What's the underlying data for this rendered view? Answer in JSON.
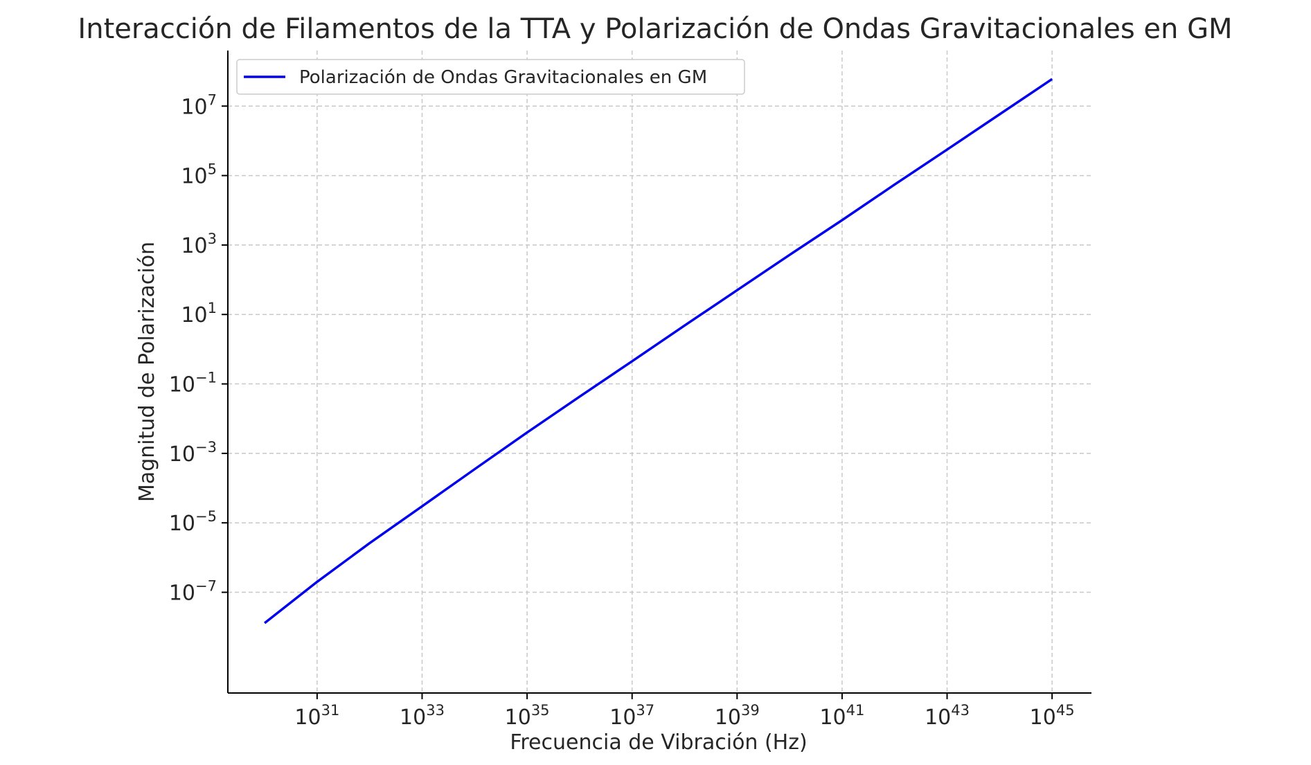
{
  "chart_data": {
    "type": "line",
    "title": "Interacción de Filamentos de la TTA y Polarización de Ondas Gravitacionales en GM",
    "xlabel": "Frecuencia de Vibración (Hz)",
    "ylabel": "Magnitud de Polarización",
    "x_scale": "log",
    "y_scale": "log",
    "xlim": [
      "1e29.3",
      "1e45.75"
    ],
    "ylim": [
      "1e-9.9",
      "1e8.6"
    ],
    "x_ticks": [
      {
        "base": "10",
        "exp": "31",
        "value": 1e+31
      },
      {
        "base": "10",
        "exp": "33",
        "value": 1e+33
      },
      {
        "base": "10",
        "exp": "35",
        "value": 1e+35
      },
      {
        "base": "10",
        "exp": "37",
        "value": 1e+37
      },
      {
        "base": "10",
        "exp": "39",
        "value": 1e+39
      },
      {
        "base": "10",
        "exp": "41",
        "value": 1e+41
      },
      {
        "base": "10",
        "exp": "43",
        "value": 1e+43
      },
      {
        "base": "10",
        "exp": "45",
        "value": 1e+45
      }
    ],
    "y_ticks": [
      {
        "base": "10",
        "exp": "7",
        "value": 10000000.0
      },
      {
        "base": "10",
        "exp": "5",
        "value": 100000.0
      },
      {
        "base": "10",
        "exp": "3",
        "value": 1000.0
      },
      {
        "base": "10",
        "exp": "1",
        "value": 10.0
      },
      {
        "base": "10",
        "exp": "−1",
        "value": 0.1
      },
      {
        "base": "10",
        "exp": "−3",
        "value": 0.001
      },
      {
        "base": "10",
        "exp": "−5",
        "value": 1e-05
      },
      {
        "base": "10",
        "exp": "−7",
        "value": 1e-07
      }
    ],
    "grid": true,
    "grid_style": "dashed",
    "legend_position": "top-left",
    "series": [
      {
        "name": "Polarización de Ondas Gravitacionales en GM",
        "color": "#0000ee",
        "x": [
          1e+30,
          1e+31,
          1e+32,
          1e+33,
          1e+34,
          1e+35,
          1e+36,
          1e+37,
          1e+38,
          1e+39,
          1e+40,
          1e+41,
          1e+42,
          1e+43,
          1e+44,
          1e+45
        ],
        "y": [
          1.3e-08,
          2e-07,
          2.6e-06,
          3e-05,
          0.00035,
          0.004,
          0.043,
          0.45,
          4.8,
          50,
          520,
          5200,
          55000.0,
          560000.0,
          5800000.0,
          60000000.0
        ]
      }
    ]
  }
}
